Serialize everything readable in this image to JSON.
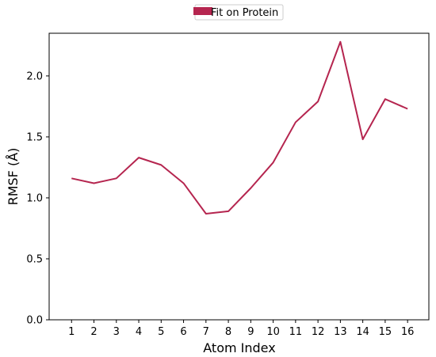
{
  "chart_data": {
    "type": "line",
    "xlabel": "Atom Index",
    "ylabel": "RMSF (Å)",
    "x": [
      1,
      2,
      3,
      4,
      5,
      6,
      7,
      8,
      9,
      10,
      11,
      12,
      13,
      14,
      15,
      16
    ],
    "x_ticks": [
      "1",
      "2",
      "3",
      "4",
      "5",
      "6",
      "7",
      "8",
      "9",
      "10",
      "11",
      "12",
      "13",
      "14",
      "15",
      "16"
    ],
    "y_ticks": [
      "0.0",
      "0.5",
      "1.0",
      "1.5",
      "2.0"
    ],
    "ylim": [
      0,
      2.35
    ],
    "xlim": [
      0.0,
      16.95
    ],
    "grid": false,
    "legend_position": "top-center, above plot",
    "series": [
      {
        "name": "Fit on Protein",
        "color": "#b5254f",
        "values": [
          1.16,
          1.12,
          1.16,
          1.33,
          1.27,
          1.12,
          0.87,
          0.89,
          1.08,
          1.29,
          1.62,
          1.79,
          2.28,
          1.48,
          1.81,
          1.73
        ]
      }
    ]
  }
}
